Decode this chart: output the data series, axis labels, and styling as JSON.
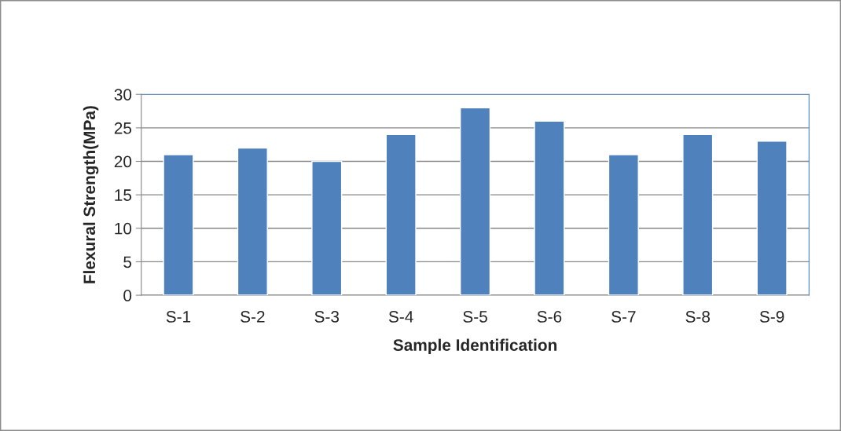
{
  "chart_data": {
    "type": "bar",
    "xlabel": "Sample Identification",
    "ylabel": "Flexural Strength(MPa)",
    "categories": [
      "S-1",
      "S-2",
      "S-3",
      "S-4",
      "S-5",
      "S-6",
      "S-7",
      "S-8",
      "S-9"
    ],
    "values": [
      21,
      22,
      20,
      24,
      28,
      26,
      21,
      24,
      23
    ],
    "color": "#4f81bd",
    "ylim": [
      0,
      30
    ],
    "yticks": [
      0,
      5,
      10,
      15,
      20,
      25,
      30
    ],
    "grid": "y",
    "legend": false
  }
}
